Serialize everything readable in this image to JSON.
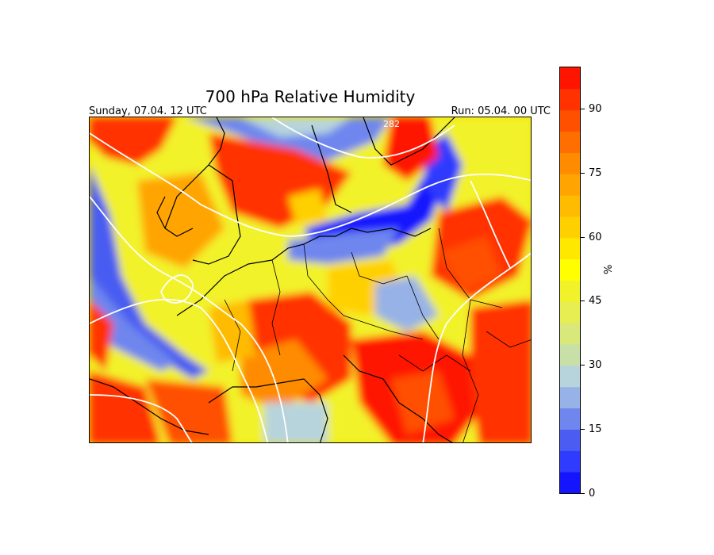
{
  "title": "700 hPa Relative Humidity",
  "valid_time": "Sunday, 07.04. 12 UTC",
  "run_time": "Run: 05.04. 00 UTC",
  "colorbar": {
    "label": "%",
    "ticks": [
      {
        "value": 0,
        "label": "0"
      },
      {
        "value": 15,
        "label": "15"
      },
      {
        "value": 30,
        "label": "30"
      },
      {
        "value": 45,
        "label": "45"
      },
      {
        "value": 60,
        "label": "60"
      },
      {
        "value": 75,
        "label": "75"
      },
      {
        "value": 90,
        "label": "90"
      }
    ],
    "min": 0,
    "max": 100,
    "bands": [
      {
        "from": 0,
        "to": 5,
        "color": "#1414ff"
      },
      {
        "from": 5,
        "to": 10,
        "color": "#2f3bff"
      },
      {
        "from": 10,
        "to": 15,
        "color": "#4a5cf2"
      },
      {
        "from": 15,
        "to": 20,
        "color": "#6e86ee"
      },
      {
        "from": 20,
        "to": 25,
        "color": "#97b2e6"
      },
      {
        "from": 25,
        "to": 30,
        "color": "#b7d4dc"
      },
      {
        "from": 30,
        "to": 35,
        "color": "#c8dfa8"
      },
      {
        "from": 35,
        "to": 40,
        "color": "#d8e87a"
      },
      {
        "from": 40,
        "to": 45,
        "color": "#e6ee52"
      },
      {
        "from": 45,
        "to": 50,
        "color": "#f2f22a"
      },
      {
        "from": 50,
        "to": 55,
        "color": "#ffff00"
      },
      {
        "from": 55,
        "to": 60,
        "color": "#ffe800"
      },
      {
        "from": 60,
        "to": 65,
        "color": "#ffd000"
      },
      {
        "from": 65,
        "to": 70,
        "color": "#ffbb00"
      },
      {
        "from": 70,
        "to": 75,
        "color": "#ffa400"
      },
      {
        "from": 75,
        "to": 80,
        "color": "#ff8c00"
      },
      {
        "from": 80,
        "to": 85,
        "color": "#ff6e00"
      },
      {
        "from": 85,
        "to": 90,
        "color": "#ff5000"
      },
      {
        "from": 90,
        "to": 95,
        "color": "#ff3200"
      },
      {
        "from": 95,
        "to": 100,
        "color": "#ff1400"
      }
    ]
  },
  "map": {
    "contour_label": "282"
  }
}
